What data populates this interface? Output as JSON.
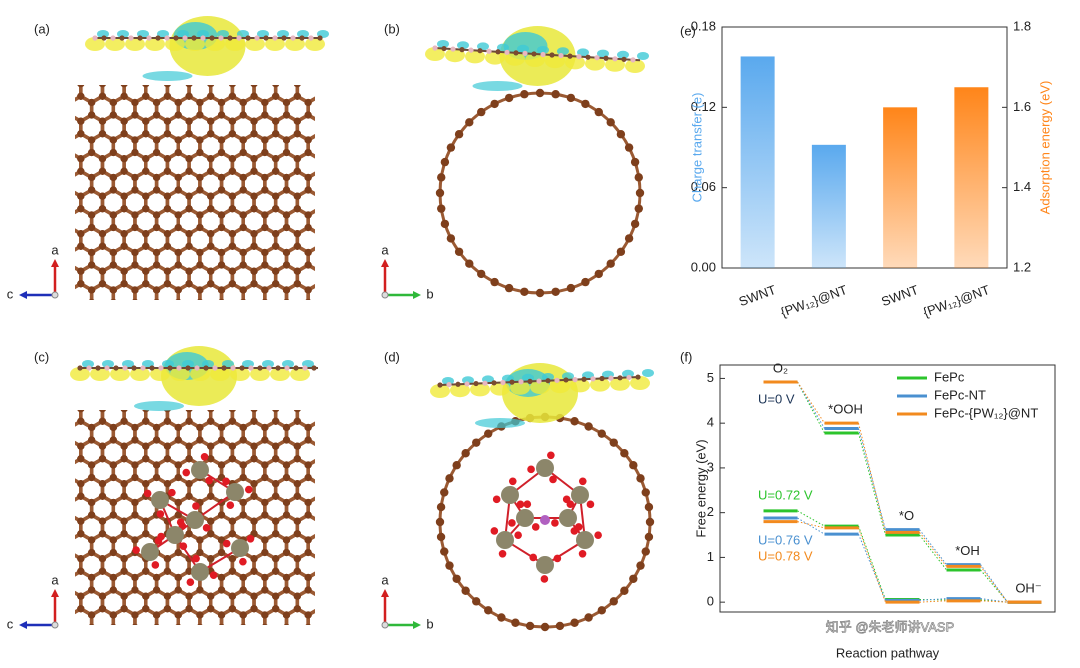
{
  "panels": [
    {
      "label": "(a)",
      "axes": [
        "a",
        "c"
      ]
    },
    {
      "label": "(b)",
      "axes": [
        "a",
        "b"
      ]
    },
    {
      "label": "(c)",
      "axes": [
        "a",
        "c"
      ]
    },
    {
      "label": "(d)",
      "axes": [
        "a",
        "b"
      ]
    }
  ],
  "watermark": "知乎 @朱老师讲VASP",
  "chart_data": [
    {
      "type": "bar",
      "panel_label": "(e)",
      "categories": [
        "SWNT",
        "{PW₁₂}@NT",
        "SWNT",
        "{PW₁₂}@NT"
      ],
      "ylabel": "Charge transfer (e)",
      "y2label": "Adsorption energy (eV)",
      "ylim": [
        0,
        0.18
      ],
      "yticks": [
        {
          "value": 0,
          "label": "0.00"
        },
        0.06,
        0.12,
        0.18
      ],
      "y2lim": [
        1.2,
        1.8
      ],
      "y2ticks": [
        1.2,
        1.4,
        1.6,
        1.8
      ],
      "grid": false,
      "series": [
        {
          "color": "#5aa9ee",
          "values": [
            0.158,
            0.092,
            null,
            null
          ]
        },
        {
          "color": "#ff8519",
          "axis": "y2",
          "values": [
            null,
            null,
            1.6,
            1.65
          ]
        }
      ]
    },
    {
      "type": "energy-levels",
      "panel_label": "(f)",
      "categories": [
        "O₂",
        "*OOH",
        "*O",
        "*OH",
        "OH⁻"
      ],
      "xlabel": "Reaction pathway",
      "ylabel": "Free energy (eV)",
      "ylim": [
        -0.22,
        5.3
      ],
      "yticks": [
        0,
        1,
        2,
        3,
        4,
        5
      ],
      "legend": "upper right",
      "annotation": {
        "text": "U=0 V",
        "color": "#1d3557"
      },
      "series": [
        {
          "name": "FePc",
          "color": "#2cc42c",
          "values": [
            4.92,
            3.78,
            1.5,
            0.72,
            0
          ],
          "limiting_values": [
            2.04,
            1.7,
            0.06,
            0.05,
            0
          ],
          "limiting_label": "U=0.72 V"
        },
        {
          "name": "FePc-NT",
          "color": "#4a90d0",
          "values": [
            4.92,
            3.88,
            1.62,
            0.84,
            0
          ],
          "limiting_values": [
            1.88,
            1.52,
            0.04,
            0.08,
            0
          ],
          "limiting_label": "U=0.76 V"
        },
        {
          "name": "FePc-{PW₁₂}@NT",
          "color": "#f28a1e",
          "values": [
            4.92,
            4.0,
            1.56,
            0.8,
            0
          ],
          "limiting_values": [
            1.8,
            1.66,
            0.0,
            0.03,
            0
          ],
          "limiting_label": "U=0.78 V"
        }
      ]
    }
  ]
}
